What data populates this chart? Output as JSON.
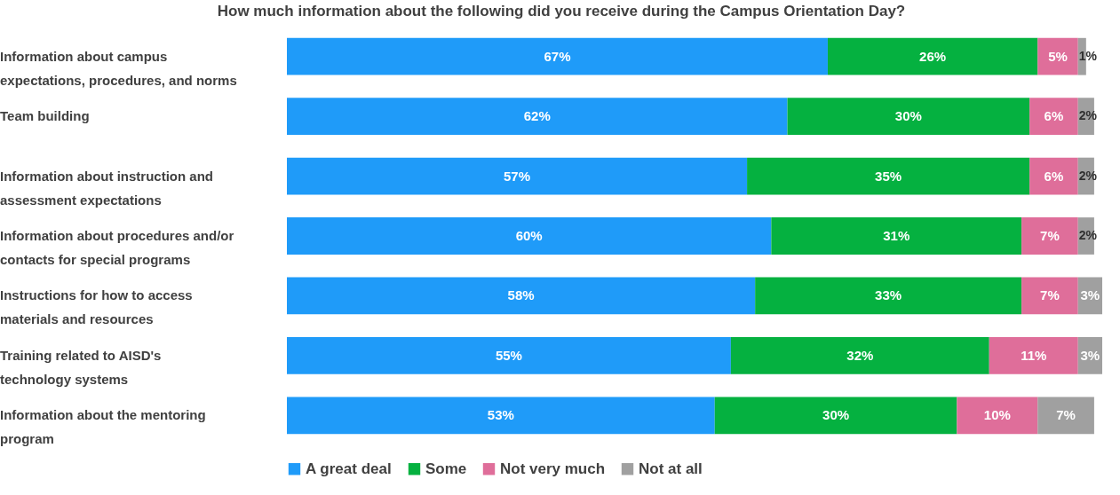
{
  "chart_data": {
    "type": "bar",
    "orientation": "horizontal",
    "stacked": true,
    "title": "How much information about the following did you receive during the Campus Orientation Day?",
    "categories": [
      "Information about campus expectations, procedures, and norms",
      "Team building",
      "Information about instruction and assessment expectations",
      "Information about procedures and/or contacts for special programs",
      "Instructions for how to access materials and resources",
      "Training related to AISD's technology systems",
      "Information about the mentoring program"
    ],
    "series": [
      {
        "name": "A great deal",
        "color": "#1f9bf9",
        "values": [
          67,
          62,
          57,
          60,
          58,
          55,
          53
        ],
        "value_labels": [
          "67%",
          "62%",
          "57%",
          "60%",
          "58%",
          "55%",
          "53%"
        ]
      },
      {
        "name": "Some",
        "color": "#05b140",
        "values": [
          26,
          30,
          35,
          31,
          33,
          32,
          30
        ],
        "value_labels": [
          "26%",
          "30%",
          "35%",
          "31%",
          "33%",
          "32%",
          "30%"
        ]
      },
      {
        "name": "Not very much",
        "color": "#df6e9a",
        "values": [
          5,
          6,
          6,
          7,
          7,
          11,
          10
        ],
        "value_labels": [
          "5%",
          "6%",
          "6%",
          "7%",
          "7%",
          "11%",
          "10%"
        ]
      },
      {
        "name": "Not at all",
        "color": "#a0a0a0",
        "values": [
          1,
          2,
          2,
          2,
          3,
          3,
          7
        ],
        "value_labels": [
          "1%",
          "2%",
          "2%",
          "2%",
          "3%",
          "3%",
          "7%"
        ]
      }
    ],
    "legend": "bottom"
  }
}
